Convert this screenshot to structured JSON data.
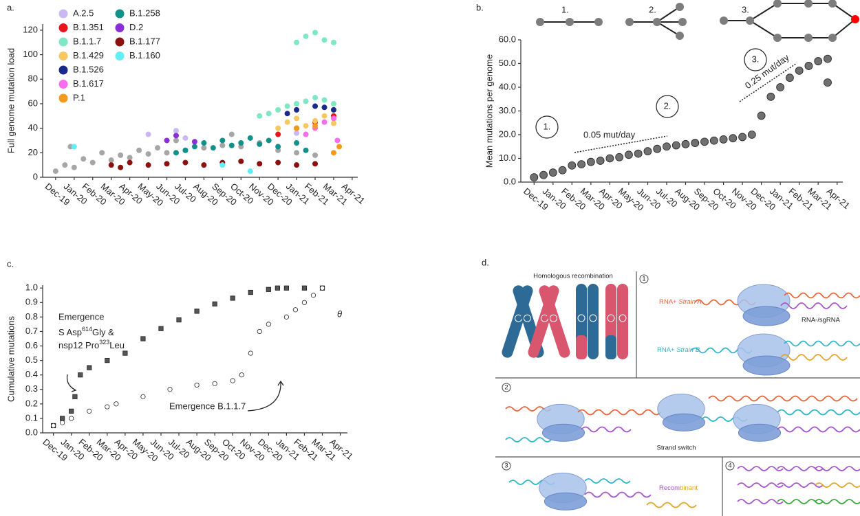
{
  "chart_data": [
    {
      "type": "scatter",
      "panel_label": "a.",
      "y_label": "Full genome mutation load",
      "xlim": [
        -0.7,
        16.3
      ],
      "ylim": [
        0,
        125
      ],
      "yticks": [
        0,
        20,
        40,
        60,
        80,
        100,
        120
      ],
      "xticks": [
        {
          "value": 0,
          "label": "Dec-19"
        },
        {
          "value": 1,
          "label": "Jan-20"
        },
        {
          "value": 2,
          "label": "Feb-20"
        },
        {
          "value": 3,
          "label": "Mar-20"
        },
        {
          "value": 4,
          "label": "Apr-20"
        },
        {
          "value": 5,
          "label": "May-20"
        },
        {
          "value": 6,
          "label": "Jun-20"
        },
        {
          "value": 7,
          "label": "Jul-20"
        },
        {
          "value": 8,
          "label": "Aug-20"
        },
        {
          "value": 9,
          "label": "Sep-20"
        },
        {
          "value": 10,
          "label": "Oct-20"
        },
        {
          "value": 11,
          "label": "Nov-20"
        },
        {
          "value": 12,
          "label": "Dec-20"
        },
        {
          "value": 13,
          "label": "Jan-21"
        },
        {
          "value": 14,
          "label": "Feb-21"
        },
        {
          "value": 15,
          "label": "Mar-21"
        },
        {
          "value": 16,
          "label": "Apr-21"
        }
      ],
      "series": [
        {
          "color": "#a6a6a6",
          "x": [
            0,
            0.5,
            1,
            1.5,
            2,
            2.5,
            3,
            3.5,
            4,
            4.5,
            5,
            5.5,
            6,
            7,
            8,
            9,
            10,
            11,
            12,
            13,
            14,
            0.8,
            6.5,
            9.5
          ],
          "values": [
            5,
            10,
            8,
            15,
            12,
            20,
            14,
            18,
            16,
            22,
            19,
            24,
            20,
            22,
            24,
            26,
            25,
            28,
            22,
            20,
            18,
            25,
            30,
            35
          ]
        },
        {
          "name": "A.2.5",
          "color": "#cbb8f2",
          "x": [
            5,
            6.5,
            7,
            13
          ],
          "values": [
            35,
            38,
            32,
            36
          ]
        },
        {
          "name": "B.1.351",
          "color": "#e8141c",
          "x": [
            12,
            13,
            14,
            15
          ],
          "values": [
            35,
            40,
            45,
            50
          ]
        },
        {
          "name": "B.1.1.7",
          "color": "#7ee8c6",
          "x": [
            11,
            11.5,
            12,
            12.5,
            13,
            13.5,
            14,
            14.5,
            15,
            13,
            13.5,
            14,
            14.5,
            15
          ],
          "values": [
            50,
            52,
            55,
            58,
            60,
            62,
            65,
            63,
            60,
            110,
            115,
            118,
            112,
            110
          ]
        },
        {
          "name": "B.1.429",
          "color": "#f6c85f",
          "x": [
            12,
            12.5,
            13,
            13.5,
            14,
            14.5,
            15
          ],
          "values": [
            40,
            45,
            48,
            42,
            46,
            50,
            44
          ]
        },
        {
          "name": "B.1.526",
          "color": "#1b2a8a",
          "x": [
            12.5,
            13,
            14,
            14.5,
            15
          ],
          "values": [
            52,
            55,
            58,
            57,
            55
          ]
        },
        {
          "name": "B.1.617",
          "color": "#f56ef0",
          "x": [
            13.5,
            14,
            14.5,
            15,
            15.2
          ],
          "values": [
            35,
            40,
            45,
            48,
            30
          ]
        },
        {
          "name": "P.1",
          "color": "#f39a1c",
          "x": [
            13,
            14,
            15,
            15.3
          ],
          "values": [
            40,
            42,
            20,
            25
          ]
        },
        {
          "name": "B.1.258",
          "color": "#12918b",
          "x": [
            6.5,
            7,
            7.5,
            8,
            8.5,
            9,
            9.5,
            10,
            10.5,
            11,
            11.5,
            12,
            13,
            13.5
          ],
          "values": [
            20,
            22,
            25,
            28,
            24,
            30,
            26,
            28,
            32,
            27,
            30,
            25,
            28,
            22
          ]
        },
        {
          "name": "D.2",
          "color": "#8a2fd8",
          "x": [
            6,
            6.5,
            7.5
          ],
          "values": [
            30,
            34,
            29
          ]
        },
        {
          "name": "B.1.177",
          "color": "#8b1111",
          "x": [
            3,
            3.5,
            4,
            5,
            6,
            7,
            8,
            9,
            10,
            11,
            12,
            13,
            14
          ],
          "values": [
            10,
            8,
            12,
            10,
            11,
            12,
            10,
            12,
            13,
            11,
            12,
            10,
            11
          ]
        },
        {
          "name": "B.1.160",
          "color": "#62eef2",
          "x": [
            1,
            9,
            10.5
          ],
          "values": [
            25,
            10,
            5
          ]
        }
      ]
    },
    {
      "type": "scatter",
      "panel_label": "b.",
      "y_label": "Mean mutations per genome",
      "xlim": [
        -0.7,
        16.3
      ],
      "ylim": [
        0,
        60
      ],
      "yticks": [
        {
          "value": 0,
          "label": "0.0"
        },
        {
          "value": 10,
          "label": "10.0"
        },
        {
          "value": 20,
          "label": "20.0"
        },
        {
          "value": 30,
          "label": "30.0"
        },
        {
          "value": 40,
          "label": "40.0"
        },
        {
          "value": 50,
          "label": "50.0"
        },
        {
          "value": 60,
          "label": "60.0"
        }
      ],
      "xticks": [
        {
          "value": 0,
          "label": "Dec-19"
        },
        {
          "value": 1,
          "label": "Jan-20"
        },
        {
          "value": 2,
          "label": "Feb-20"
        },
        {
          "value": 3,
          "label": "Mar-20"
        },
        {
          "value": 4,
          "label": "Apr-20"
        },
        {
          "value": 5,
          "label": "May-20"
        },
        {
          "value": 6,
          "label": "Jun-20"
        },
        {
          "value": 7,
          "label": "Jul-20"
        },
        {
          "value": 8,
          "label": "Aug-20"
        },
        {
          "value": 9,
          "label": "Sep-20"
        },
        {
          "value": 10,
          "label": "Oct-20"
        },
        {
          "value": 11,
          "label": "Nov-20"
        },
        {
          "value": 12,
          "label": "Dec-20"
        },
        {
          "value": 13,
          "label": "Jan-21"
        },
        {
          "value": 14,
          "label": "Feb-21"
        },
        {
          "value": 15,
          "label": "Mar-21"
        },
        {
          "value": 16,
          "label": "Apr-21"
        }
      ],
      "series": [
        {
          "color": "#707070",
          "marker": "circle",
          "x": [
            0,
            0.5,
            1,
            1.5,
            2,
            2.5,
            3,
            3.5,
            4,
            4.5,
            5,
            5.5,
            6,
            6.5,
            7,
            7.5,
            8,
            8.5,
            9,
            9.5,
            10,
            10.5,
            11,
            11.5,
            12,
            12.5,
            13,
            13.5,
            14,
            14.5,
            15,
            15.5,
            15.5
          ],
          "values": [
            2,
            3,
            4,
            5,
            7,
            7.5,
            8.5,
            9,
            10,
            10.5,
            11.5,
            12,
            13,
            14,
            15,
            15.5,
            16,
            16.5,
            17,
            17.5,
            18,
            18.5,
            19,
            20,
            28,
            36,
            40,
            44,
            47,
            49,
            51,
            52,
            42
          ]
        }
      ],
      "icon_labels": [
        "1.",
        "2.",
        "3."
      ],
      "phase_labels": [
        "1.",
        "2.",
        "3."
      ],
      "rate_labels": [
        "0.05 mut/day",
        "0.25 mut/day"
      ]
    },
    {
      "type": "scatter",
      "panel_label": "c.",
      "y_label": "Cumulative mutations",
      "xlim": [
        -0.6,
        16.4
      ],
      "ylim": [
        0,
        1.02
      ],
      "yticks": [
        {
          "value": 0,
          "label": "0.0"
        },
        {
          "value": 0.1,
          "label": "0.1"
        },
        {
          "value": 0.2,
          "label": "0.2"
        },
        {
          "value": 0.3,
          "label": "0.3"
        },
        {
          "value": 0.4,
          "label": "0.4"
        },
        {
          "value": 0.5,
          "label": "0.5"
        },
        {
          "value": 0.6,
          "label": "0.6"
        },
        {
          "value": 0.7,
          "label": "0.7"
        },
        {
          "value": 0.8,
          "label": "0.8"
        },
        {
          "value": 0.9,
          "label": "0.9"
        },
        {
          "value": 1,
          "label": "1.0"
        }
      ],
      "xticks": [
        {
          "value": 0,
          "label": "Dec-19"
        },
        {
          "value": 1,
          "label": "Jan-20"
        },
        {
          "value": 2,
          "label": "Feb-20"
        },
        {
          "value": 3,
          "label": "Mar-20"
        },
        {
          "value": 4,
          "label": "Apr-20"
        },
        {
          "value": 5,
          "label": "May-20"
        },
        {
          "value": 6,
          "label": "Jun-20"
        },
        {
          "value": 7,
          "label": "Jul-20"
        },
        {
          "value": 8,
          "label": "Aug-20"
        },
        {
          "value": 9,
          "label": "Sep-20"
        },
        {
          "value": 10,
          "label": "Oct-20"
        },
        {
          "value": 11,
          "label": "Nov-20"
        },
        {
          "value": 12,
          "label": "Dec-20"
        },
        {
          "value": 13,
          "label": "Jan-21"
        },
        {
          "value": 14,
          "label": "Feb-21"
        },
        {
          "value": 15,
          "label": "Mar-21"
        },
        {
          "value": 16,
          "label": "Apr-21"
        }
      ],
      "series": [
        {
          "color": "#555555",
          "marker": "square",
          "x": [
            0,
            0.5,
            1,
            1.2,
            1.5,
            2,
            3,
            4,
            5,
            6,
            7,
            8,
            9,
            10,
            11,
            12,
            12.5,
            13,
            14,
            15
          ],
          "values": [
            0.05,
            0.1,
            0.15,
            0.25,
            0.4,
            0.45,
            0.5,
            0.55,
            0.65,
            0.72,
            0.78,
            0.84,
            0.89,
            0.93,
            0.97,
            0.99,
            1,
            1,
            1,
            1
          ]
        },
        {
          "color": "#555555",
          "marker": "circle",
          "x": [
            0,
            0.5,
            1,
            2,
            3,
            3.5,
            5,
            6.5,
            8,
            9,
            10,
            10.5,
            11,
            11.5,
            12,
            13,
            13.5,
            14,
            14.5,
            15
          ],
          "values": [
            0.05,
            0.07,
            0.1,
            0.15,
            0.18,
            0.2,
            0.25,
            0.3,
            0.33,
            0.34,
            0.36,
            0.4,
            0.55,
            0.7,
            0.75,
            0.8,
            0.85,
            0.9,
            0.95,
            1
          ]
        }
      ],
      "annotation_1": [
        "Emergence",
        "S Asp",
        "614",
        "Gly &",
        "nsp12 Pro",
        "323",
        "Leu"
      ],
      "annotation_2": "Emergence B.1.1.7",
      "theta": "θ"
    }
  ],
  "diagram": {
    "panel_label": "d.",
    "title": "Homologous recombination",
    "step_labels": [
      "1",
      "2",
      "3",
      "4"
    ],
    "strain_a": [
      "RNA+ ",
      "Strain A"
    ],
    "rna_minus": "RNA-/sgRNA",
    "strain_b": [
      "RNA+ ",
      "Strain B"
    ],
    "strand_switch": "Strand switch",
    "recombinant": [
      "Recom",
      "binant"
    ]
  }
}
